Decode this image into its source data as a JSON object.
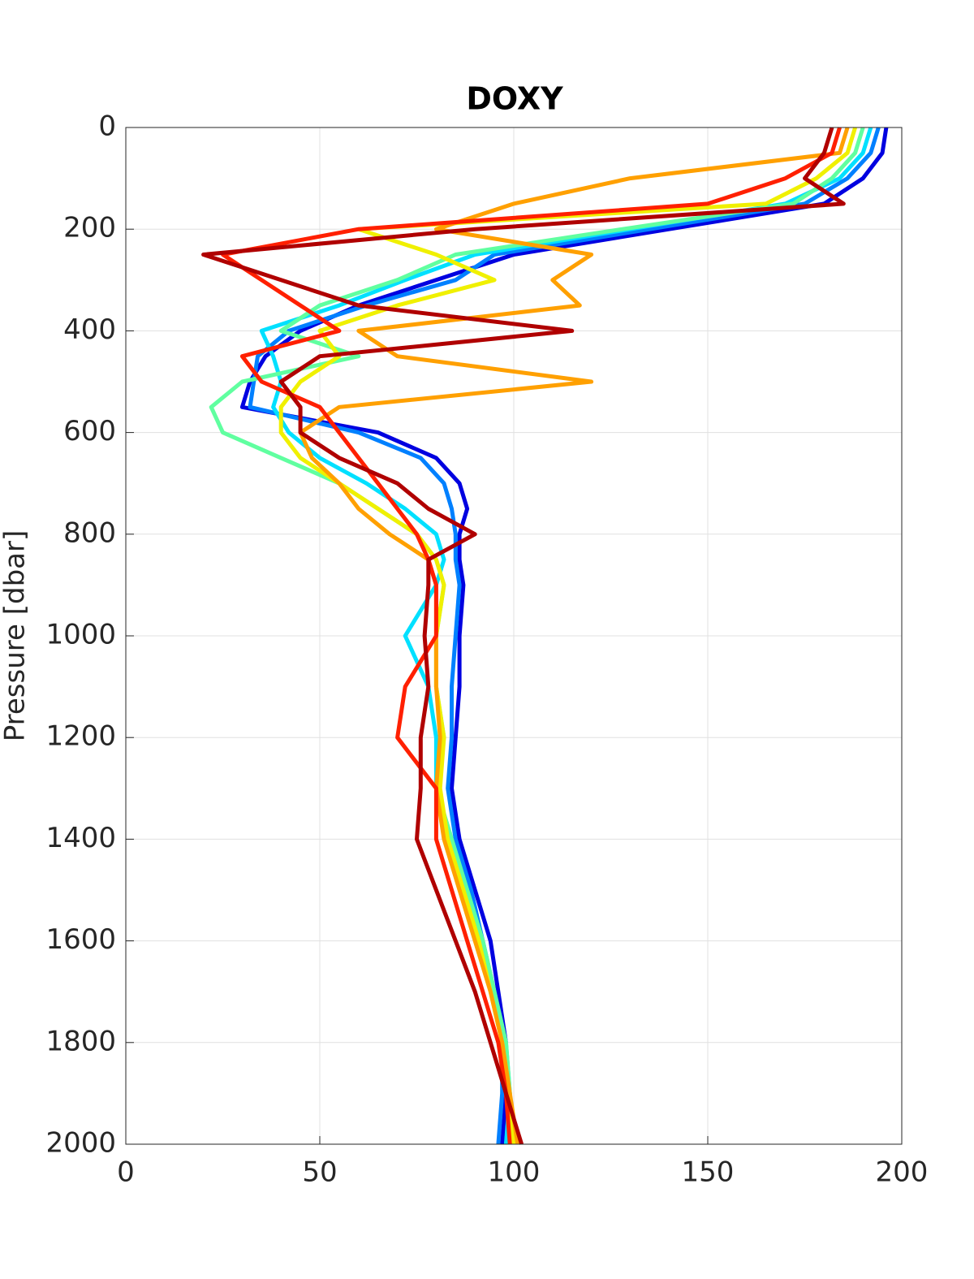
{
  "chart_data": {
    "type": "profile",
    "title": "DOXY",
    "ylabel": "Pressure [dbar]",
    "y": [
      0,
      50,
      100,
      150,
      200,
      250,
      300,
      350,
      400,
      450,
      500,
      550,
      600,
      650,
      700,
      750,
      800,
      850,
      900,
      1000,
      1100,
      1200,
      1300,
      1400,
      1500,
      1600,
      1700,
      1800,
      1900,
      2000
    ],
    "series": [
      {
        "color": "#0000e0",
        "values": [
          196,
          195,
          190,
          180,
          140,
          100,
          80,
          60,
          45,
          36,
          32,
          30,
          65,
          80,
          86,
          88,
          86,
          86,
          87,
          86,
          86,
          85,
          84,
          86,
          90,
          94,
          96,
          98,
          98,
          97
        ]
      },
      {
        "color": "#0080ff",
        "values": [
          194,
          192,
          186,
          175,
          135,
          95,
          85,
          62,
          42,
          34,
          33,
          32,
          60,
          76,
          82,
          84,
          85,
          85,
          86,
          85,
          84,
          84,
          83,
          85,
          89,
          92,
          95,
          97,
          97,
          96
        ]
      },
      {
        "color": "#00e0ff",
        "values": [
          192,
          190,
          184,
          170,
          130,
          90,
          72,
          55,
          35,
          38,
          40,
          38,
          42,
          50,
          62,
          72,
          80,
          82,
          80,
          72,
          78,
          80,
          80,
          84,
          88,
          92,
          95,
          98,
          99,
          98
        ]
      },
      {
        "color": "#60ffa0",
        "values": [
          190,
          188,
          182,
          172,
          128,
          85,
          70,
          50,
          40,
          60,
          30,
          22,
          25,
          40,
          55,
          65,
          75,
          80,
          82,
          80,
          80,
          82,
          80,
          84,
          88,
          92,
          95,
          98,
          99,
          100
        ]
      },
      {
        "color": "#f0f000",
        "values": [
          188,
          186,
          178,
          165,
          60,
          80,
          95,
          70,
          50,
          55,
          45,
          40,
          40,
          45,
          55,
          65,
          75,
          80,
          82,
          80,
          80,
          82,
          81,
          83,
          87,
          91,
          94,
          97,
          99,
          100
        ]
      },
      {
        "color": "#ffa000",
        "values": [
          186,
          184,
          130,
          100,
          80,
          120,
          110,
          117,
          60,
          70,
          120,
          55,
          45,
          48,
          55,
          60,
          68,
          78,
          80,
          80,
          80,
          81,
          80,
          82,
          86,
          90,
          94,
          97,
          99,
          101
        ]
      },
      {
        "color": "#ff2000",
        "values": [
          184,
          182,
          170,
          150,
          60,
          25,
          35,
          45,
          55,
          30,
          35,
          50,
          55,
          60,
          65,
          70,
          75,
          78,
          80,
          80,
          72,
          70,
          80,
          80,
          84,
          88,
          92,
          96,
          98,
          99
        ]
      },
      {
        "color": "#b00000",
        "values": [
          182,
          180,
          175,
          185,
          90,
          20,
          40,
          60,
          115,
          50,
          40,
          45,
          45,
          55,
          70,
          78,
          90,
          78,
          78,
          77,
          78,
          76,
          76,
          75,
          80,
          85,
          90,
          94,
          98,
          102
        ]
      }
    ],
    "xlim": [
      0,
      200
    ],
    "xticks": [
      0,
      50,
      100,
      150,
      200
    ],
    "ylim": [
      2000,
      0
    ],
    "yticks": [
      0,
      200,
      400,
      600,
      800,
      1000,
      1200,
      1400,
      1600,
      1800,
      2000
    ],
    "grid": true
  }
}
